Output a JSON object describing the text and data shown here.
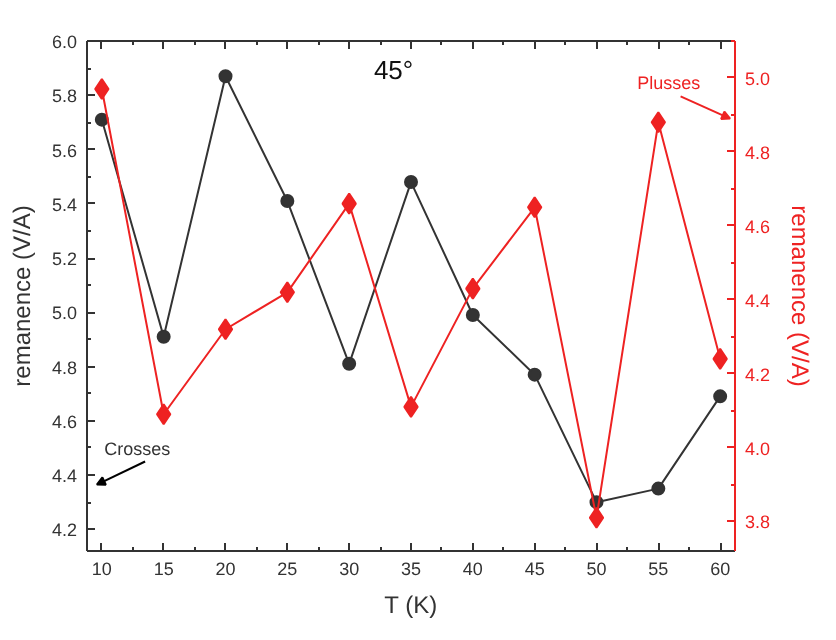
{
  "chart_data": {
    "type": "line",
    "title": "45°",
    "xlabel": "T (K)",
    "ylabel": "remanence (V/A)",
    "y2label": "remanence (V/A)",
    "x": [
      10,
      15,
      20,
      25,
      30,
      35,
      40,
      45,
      50,
      55,
      60
    ],
    "series": [
      {
        "name": "Crosses",
        "color": "#333333",
        "marker": "circle",
        "values": [
          5.71,
          4.91,
          5.87,
          5.41,
          4.81,
          5.48,
          4.99,
          4.77,
          4.3,
          4.35,
          4.69
        ]
      },
      {
        "name": "Plusses",
        "color": "#ee2222",
        "marker": "diamond",
        "axis": "y2",
        "values": [
          4.97,
          4.09,
          4.32,
          4.42,
          4.66,
          4.11,
          4.43,
          4.65,
          3.81,
          4.88,
          4.24
        ]
      }
    ],
    "xlim": [
      8.8,
      61.2
    ],
    "xticks": [
      10,
      15,
      20,
      25,
      30,
      35,
      40,
      45,
      50,
      55,
      60
    ],
    "ylim": [
      4.12,
      6.0
    ],
    "yticks": [
      4.2,
      4.4,
      4.6,
      4.8,
      {
        "value": 5,
        "label": "5.0"
      },
      5.2,
      5.4,
      5.6,
      5.8,
      {
        "value": 6,
        "label": "6.0"
      }
    ],
    "y2lim": [
      3.72,
      5.1
    ],
    "y2ticks": [
      3.8,
      {
        "value": 4,
        "label": "4.0"
      },
      4.2,
      4.4,
      4.6,
      4.8,
      {
        "value": 5,
        "label": "5.0"
      }
    ],
    "grid": false,
    "line_style": "solid"
  }
}
